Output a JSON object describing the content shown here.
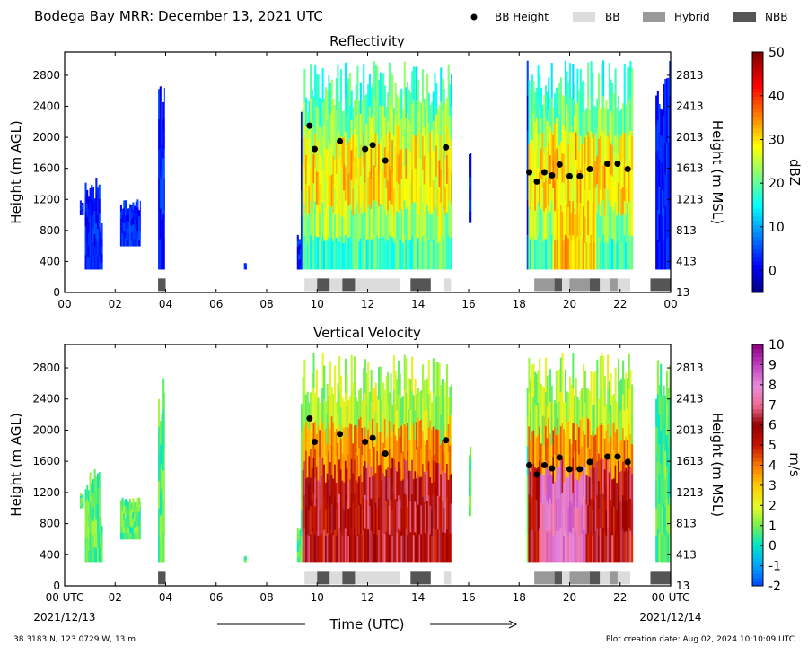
{
  "title": "Bodega Bay MRR:  December 13, 2021 UTC",
  "legend": [
    {
      "label": "BB Height",
      "kind": "dot",
      "color": "#000000"
    },
    {
      "label": "BB",
      "kind": "box",
      "color": "#dcdcdc"
    },
    {
      "label": "Hybrid",
      "kind": "box",
      "color": "#999999"
    },
    {
      "label": "NBB",
      "kind": "box",
      "color": "#555555"
    }
  ],
  "footer": {
    "location": "38.3183 N, 123.0729 W, 13 m",
    "creation": "Plot creation date: Aug 02, 2024 10:10:09 UTC",
    "start_date": "2021/12/13",
    "end_date": "2021/12/14",
    "xlabel": "Time (UTC)"
  },
  "chart_data": [
    {
      "type": "heatmap",
      "title": "Reflectivity",
      "ylabel": "Height (m AGL)",
      "ylabel_right": "Height (m MSL)",
      "xlim": [
        0,
        24
      ],
      "ylim": [
        0,
        3100
      ],
      "x_ticks": [
        "00",
        "02",
        "04",
        "06",
        "08",
        "10",
        "12",
        "14",
        "16",
        "18",
        "20",
        "22",
        "00"
      ],
      "y_ticks": [
        0,
        400,
        800,
        1200,
        1600,
        2000,
        2400,
        2800
      ],
      "y_ticks_right": [
        13,
        413,
        813,
        1213,
        1613,
        2013,
        2413,
        2813
      ],
      "colorbar": {
        "label": "dBZ",
        "min": -5,
        "max": 50,
        "ticks": [
          0,
          10,
          20,
          30,
          40,
          50
        ]
      },
      "bb_height": [
        {
          "t": 9.7,
          "h": 2150
        },
        {
          "t": 9.9,
          "h": 1850
        },
        {
          "t": 10.9,
          "h": 1950
        },
        {
          "t": 11.9,
          "h": 1850
        },
        {
          "t": 12.2,
          "h": 1900
        },
        {
          "t": 12.7,
          "h": 1700
        },
        {
          "t": 15.1,
          "h": 1870
        },
        {
          "t": 18.4,
          "h": 1550
        },
        {
          "t": 18.7,
          "h": 1430
        },
        {
          "t": 19.0,
          "h": 1550
        },
        {
          "t": 19.3,
          "h": 1510
        },
        {
          "t": 19.6,
          "h": 1650
        },
        {
          "t": 20.0,
          "h": 1500
        },
        {
          "t": 20.4,
          "h": 1500
        },
        {
          "t": 20.8,
          "h": 1590
        },
        {
          "t": 21.5,
          "h": 1660
        },
        {
          "t": 21.9,
          "h": 1660
        },
        {
          "t": 22.3,
          "h": 1590
        }
      ]
    },
    {
      "type": "heatmap",
      "title": "Vertical Velocity",
      "ylabel": "Height (m AGL)",
      "ylabel_right": "Height (m MSL)",
      "xlim": [
        0,
        24
      ],
      "ylim": [
        0,
        3100
      ],
      "x_ticks": [
        "00 UTC",
        "02",
        "04",
        "06",
        "08",
        "10",
        "12",
        "14",
        "16",
        "18",
        "20",
        "22",
        "00 UTC"
      ],
      "y_ticks": [
        0,
        400,
        800,
        1200,
        1600,
        2000,
        2400,
        2800
      ],
      "y_ticks_right": [
        13,
        413,
        813,
        1213,
        1613,
        2013,
        2413,
        2813
      ],
      "colorbar": {
        "label": "m/s",
        "min": -2,
        "max": 10,
        "ticks": [
          -2,
          -1,
          0,
          1,
          2,
          3,
          4,
          5,
          6,
          7,
          8,
          9,
          10
        ]
      },
      "bb_height": [
        {
          "t": 9.7,
          "h": 2150
        },
        {
          "t": 9.9,
          "h": 1850
        },
        {
          "t": 10.9,
          "h": 1950
        },
        {
          "t": 11.9,
          "h": 1850
        },
        {
          "t": 12.2,
          "h": 1900
        },
        {
          "t": 12.7,
          "h": 1700
        },
        {
          "t": 15.1,
          "h": 1870
        },
        {
          "t": 18.4,
          "h": 1550
        },
        {
          "t": 18.7,
          "h": 1430
        },
        {
          "t": 19.0,
          "h": 1550
        },
        {
          "t": 19.3,
          "h": 1510
        },
        {
          "t": 19.6,
          "h": 1650
        },
        {
          "t": 20.0,
          "h": 1500
        },
        {
          "t": 20.4,
          "h": 1500
        },
        {
          "t": 20.8,
          "h": 1590
        },
        {
          "t": 21.5,
          "h": 1660
        },
        {
          "t": 21.9,
          "h": 1660
        },
        {
          "t": 22.3,
          "h": 1590
        }
      ]
    }
  ],
  "bb_type_bars": [
    {
      "start": 3.7,
      "end": 4.0,
      "type": "NBB"
    },
    {
      "start": 9.5,
      "end": 10.0,
      "type": "BB"
    },
    {
      "start": 10.0,
      "end": 10.5,
      "type": "NBB"
    },
    {
      "start": 10.5,
      "end": 11.0,
      "type": "BB"
    },
    {
      "start": 11.0,
      "end": 11.5,
      "type": "NBB"
    },
    {
      "start": 11.5,
      "end": 13.3,
      "type": "BB"
    },
    {
      "start": 13.7,
      "end": 14.5,
      "type": "NBB"
    },
    {
      "start": 15.0,
      "end": 15.3,
      "type": "BB"
    },
    {
      "start": 18.6,
      "end": 19.4,
      "type": "Hybrid"
    },
    {
      "start": 19.4,
      "end": 19.7,
      "type": "NBB"
    },
    {
      "start": 19.7,
      "end": 20.0,
      "type": "BB"
    },
    {
      "start": 20.0,
      "end": 20.8,
      "type": "Hybrid"
    },
    {
      "start": 20.8,
      "end": 21.2,
      "type": "NBB"
    },
    {
      "start": 21.2,
      "end": 21.6,
      "type": "BB"
    },
    {
      "start": 21.6,
      "end": 21.9,
      "type": "Hybrid"
    },
    {
      "start": 21.9,
      "end": 22.4,
      "type": "BB"
    },
    {
      "start": 23.2,
      "end": 24.0,
      "type": "NBB"
    }
  ]
}
